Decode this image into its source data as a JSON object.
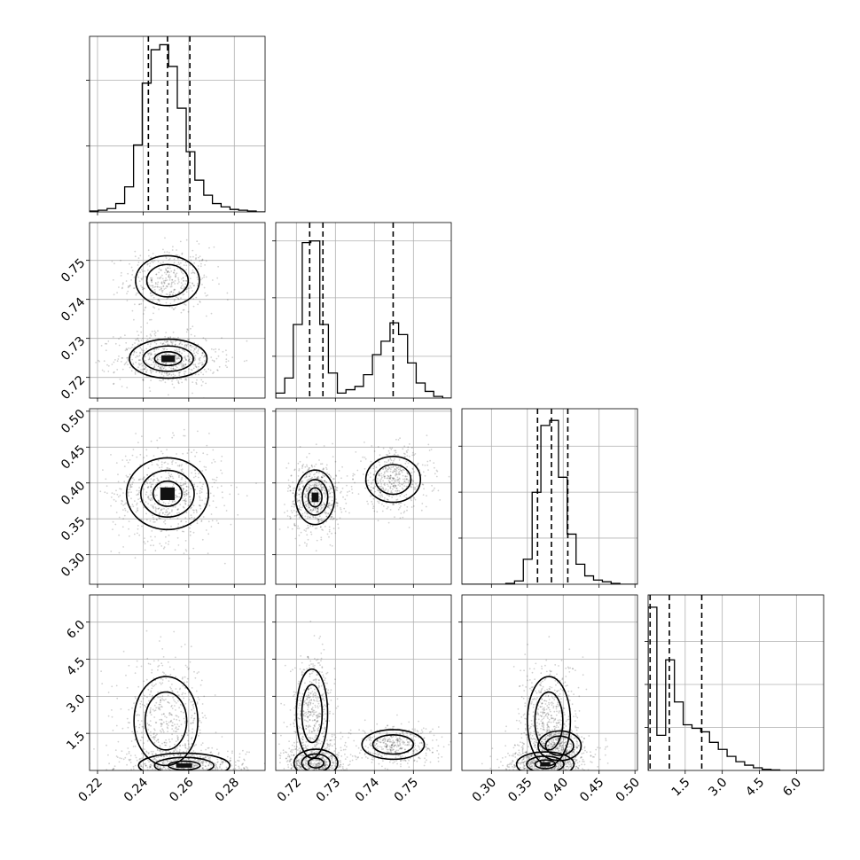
{
  "chart_data": {
    "type": "corner",
    "title": "",
    "parameters": [
      {
        "ticks": [
          0.22,
          0.24,
          0.26,
          0.28
        ],
        "tick_labels": [
          "0.22",
          "0.24",
          "0.26",
          "0.28"
        ],
        "range": [
          0.2165,
          0.2935
        ],
        "quantiles": [
          0.2423,
          0.2507,
          0.2605
        ],
        "hist": {
          "bins": [
            0.2165,
            0.2203,
            0.2242,
            0.228,
            0.2319,
            0.2358,
            0.2396,
            0.2435,
            0.2473,
            0.2512,
            0.255,
            0.2589,
            0.2627,
            0.2666,
            0.2704,
            0.2742,
            0.2781,
            0.2819,
            0.2858,
            0.2896,
            0.2935
          ],
          "counts": [
            0.005,
            0.01,
            0.02,
            0.05,
            0.15,
            0.4,
            0.77,
            0.97,
            1.0,
            0.87,
            0.62,
            0.36,
            0.19,
            0.1,
            0.05,
            0.03,
            0.015,
            0.01,
            0.005,
            0.0
          ],
          "ylim": [
            0,
            1.05
          ],
          "yticks": [
            0.394,
            0.787
          ]
        }
      },
      {
        "ticks": [
          0.72,
          0.73,
          0.74,
          0.75
        ],
        "tick_labels": [
          "0.72",
          "0.73",
          "0.74",
          "0.75"
        ],
        "range": [
          0.7147,
          0.7597
        ],
        "quantiles": [
          0.7234,
          0.7268,
          0.7448
        ],
        "hist": {
          "bins": [
            0.7147,
            0.717,
            0.7192,
            0.7215,
            0.7237,
            0.726,
            0.7282,
            0.7305,
            0.7327,
            0.735,
            0.7372,
            0.7395,
            0.7417,
            0.744,
            0.7462,
            0.7485,
            0.7507,
            0.753,
            0.7552,
            0.7575,
            0.7597
          ],
          "counts": [
            0.03,
            0.12,
            0.44,
            0.93,
            0.94,
            0.44,
            0.15,
            0.03,
            0.05,
            0.07,
            0.14,
            0.26,
            0.34,
            0.45,
            0.38,
            0.21,
            0.09,
            0.04,
            0.01,
            0.0
          ],
          "ylim": [
            0,
            1.05
          ],
          "yticks": [
            0.25,
            0.6,
            0.94
          ]
        }
      },
      {
        "ticks": [
          0.3,
          0.35,
          0.4,
          0.45,
          0.5
        ],
        "tick_labels": [
          "0.30",
          "0.35",
          "0.40",
          "0.45",
          "0.50"
        ],
        "range": [
          0.2588,
          0.5035
        ],
        "quantiles": [
          0.3642,
          0.3836,
          0.4064
        ],
        "hist": {
          "bins": [
            0.2588,
            0.271,
            0.2833,
            0.2955,
            0.3077,
            0.32,
            0.3322,
            0.3444,
            0.3567,
            0.3689,
            0.3812,
            0.3934,
            0.4056,
            0.4179,
            0.4301,
            0.4423,
            0.4546,
            0.4668,
            0.479,
            0.4913,
            0.5035
          ],
          "counts": [
            0.0,
            0.0,
            0.0,
            0.0,
            0.0,
            0.005,
            0.02,
            0.15,
            0.55,
            0.95,
            0.98,
            0.64,
            0.3,
            0.12,
            0.05,
            0.025,
            0.015,
            0.005,
            0.0,
            0.0
          ],
          "ylim": [
            0,
            1.05
          ],
          "yticks": [
            0.276,
            0.551,
            0.826
          ]
        }
      },
      {
        "ticks": [
          1.5,
          3.0,
          4.5,
          6.0
        ],
        "tick_labels": [
          "1.5",
          "3.0",
          "4.5",
          "6.0"
        ],
        "range": [
          0.0,
          7.1
        ],
        "quantiles": [
          0.08,
          0.86,
          2.17
        ],
        "hist": {
          "bins": [
            0.0,
            0.355,
            0.71,
            1.065,
            1.42,
            1.775,
            2.13,
            2.485,
            2.84,
            3.195,
            3.55,
            3.905,
            4.26,
            4.615,
            4.97,
            5.325,
            5.68,
            6.035,
            6.39,
            6.745,
            7.1
          ],
          "counts": [
            0.93,
            0.2,
            0.63,
            0.39,
            0.26,
            0.24,
            0.22,
            0.16,
            0.12,
            0.08,
            0.05,
            0.03,
            0.015,
            0.006,
            0.003,
            0.0,
            0.0,
            0.0,
            0.0,
            0.0
          ],
          "ylim": [
            0,
            1.0
          ],
          "yticks": [
            0.245,
            0.49,
            0.735
          ]
        }
      }
    ],
    "density_modes": {
      "1,0": [
        {
          "x": 0.2507,
          "y": 0.7448,
          "sx": 0.007,
          "sy": 0.0032,
          "w": 0.7
        },
        {
          "x": 0.251,
          "y": 0.7248,
          "sx": 0.0085,
          "sy": 0.0025,
          "w": 1.0
        }
      ],
      "2,0": [
        {
          "x": 0.2507,
          "y": 0.385,
          "sx": 0.009,
          "sy": 0.025,
          "w": 1.0
        }
      ],
      "2,1": [
        {
          "x": 0.7248,
          "y": 0.38,
          "sx": 0.0025,
          "sy": 0.019,
          "w": 1.0
        },
        {
          "x": 0.7448,
          "y": 0.405,
          "sx": 0.0035,
          "sy": 0.016,
          "w": 0.75
        }
      ],
      "3,0": [
        {
          "x": 0.25,
          "y": 2.0,
          "sx": 0.007,
          "sy": 0.9,
          "w": 0.8
        },
        {
          "x": 0.258,
          "y": 0.2,
          "sx": 0.01,
          "sy": 0.25,
          "w": 1.0
        }
      ],
      "3,1": [
        {
          "x": 0.724,
          "y": 2.3,
          "sx": 0.002,
          "sy": 0.9,
          "w": 0.8
        },
        {
          "x": 0.725,
          "y": 0.3,
          "sx": 0.0028,
          "sy": 0.28,
          "w": 0.9
        },
        {
          "x": 0.7448,
          "y": 1.05,
          "sx": 0.004,
          "sy": 0.3,
          "w": 0.7
        }
      ],
      "3,2": [
        {
          "x": 0.38,
          "y": 2.0,
          "sx": 0.015,
          "sy": 0.9,
          "w": 0.8
        },
        {
          "x": 0.395,
          "y": 1.0,
          "sx": 0.015,
          "sy": 0.3,
          "w": 0.6
        },
        {
          "x": 0.375,
          "y": 0.25,
          "sx": 0.02,
          "sy": 0.25,
          "w": 1.0
        }
      ]
    }
  }
}
